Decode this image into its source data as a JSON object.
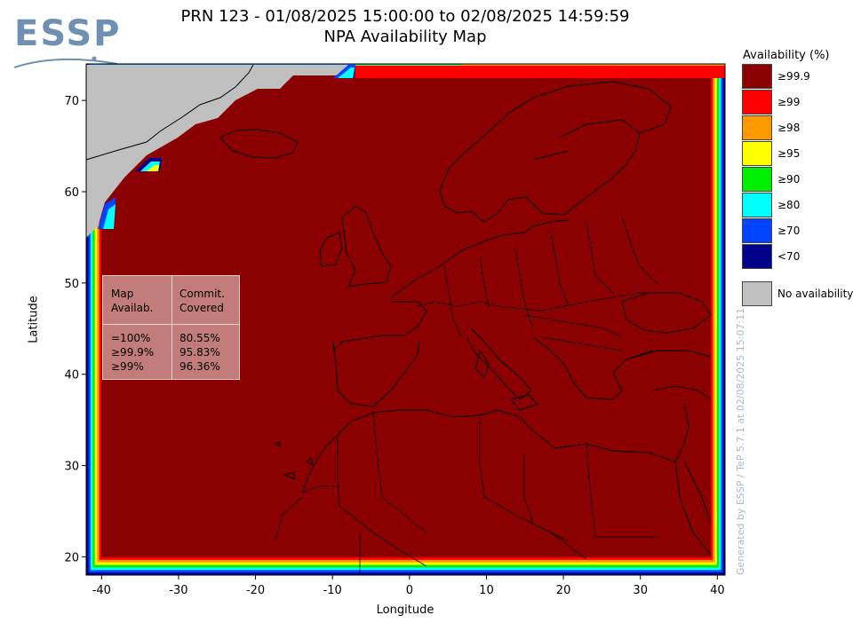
{
  "logo": {
    "text": "ESSP"
  },
  "title": "PRN 123 - 01/08/2025 15:00:00 to 02/08/2025 14:59:59",
  "subtitle": "NPA Availability Map",
  "axes": {
    "xlabel": "Longitude",
    "ylabel": "Latitude",
    "xticks": [
      "-40",
      "-30",
      "-20",
      "-10",
      "0",
      "10",
      "20",
      "30",
      "40"
    ],
    "yticks": [
      "20",
      "30",
      "40",
      "50",
      "60",
      "70"
    ],
    "lon_range": [
      -42,
      41
    ],
    "lat_range": [
      18,
      74
    ]
  },
  "legend": {
    "title": "Availability (%)",
    "items": [
      {
        "label": "≥99.9",
        "color": "#8b0000"
      },
      {
        "label": "≥99",
        "color": "#ff0000"
      },
      {
        "label": "≥98",
        "color": "#ff9900"
      },
      {
        "label": "≥95",
        "color": "#ffff00"
      },
      {
        "label": "≥90",
        "color": "#00ee00"
      },
      {
        "label": "≥80",
        "color": "#00ffff"
      },
      {
        "label": "≥70",
        "color": "#0044ff"
      },
      {
        "label": "<70",
        "color": "#00008b"
      }
    ],
    "no_availability": {
      "label": "No availability",
      "color": "#c0c0c0"
    }
  },
  "stats": {
    "col1_header": [
      "Map",
      "Availab."
    ],
    "col2_header": [
      "Commit.",
      "Covered"
    ],
    "rows": [
      {
        "level": "=100%",
        "covered": "80.55%"
      },
      {
        "level": "≥99.9%",
        "covered": "95.83%"
      },
      {
        "level": "≥99%",
        "covered": "96.36%"
      }
    ]
  },
  "footer_vertical": "Generated by ESSP / TeP 5.7.1 at 02/08/2025 15:07:11",
  "colors": {
    "background": "#ffffff",
    "map_main": "#8b0000",
    "border_lines": "#000000"
  }
}
